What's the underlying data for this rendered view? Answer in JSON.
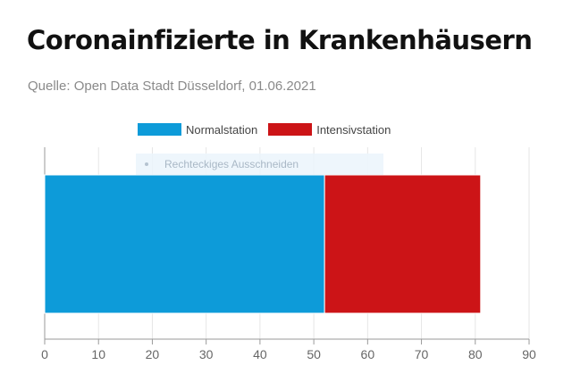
{
  "chart_data": {
    "type": "bar",
    "orientation": "horizontal",
    "stacked": true,
    "title": "Coronainfizierte in Krankenhäusern",
    "subtitle": "Quelle: Open Data Stadt Düsseldorf, 01.06.2021",
    "categories": [
      ""
    ],
    "series": [
      {
        "name": "Normalstation",
        "values": [
          52
        ],
        "color": "#0d9bd9"
      },
      {
        "name": "Intensivstation",
        "values": [
          29
        ],
        "color": "#cc1417"
      }
    ],
    "xlim": [
      0,
      90
    ],
    "xticks": [
      "0",
      "10",
      "20",
      "30",
      "40",
      "50",
      "60",
      "70",
      "80",
      "90"
    ],
    "grid": true,
    "legend": "top-center"
  },
  "overlay": {
    "label": "Rechteckiges Ausschneiden"
  }
}
